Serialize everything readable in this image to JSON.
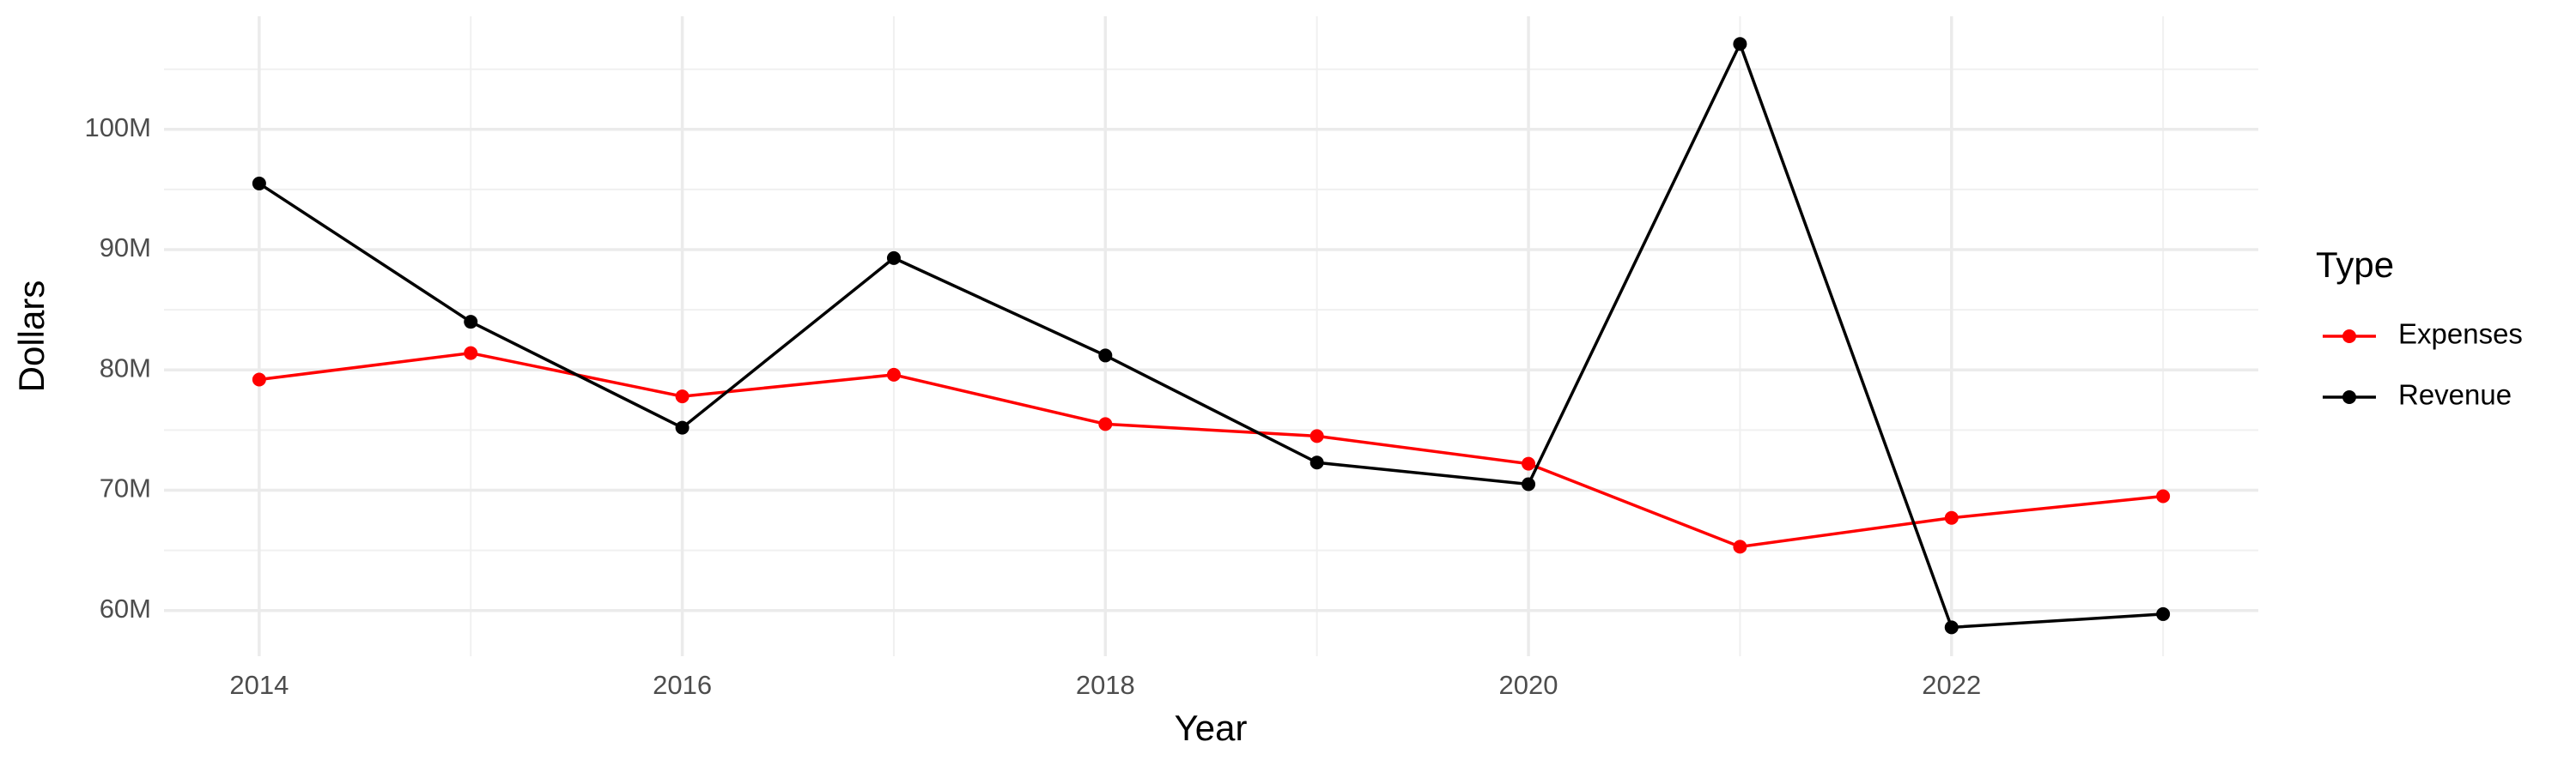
{
  "chart_data": {
    "type": "line",
    "x_label": "Year",
    "y_label": "Dollars",
    "legend_title": "Type",
    "legend_position": "right",
    "grid": true,
    "x": [
      2014,
      2015,
      2016,
      2017,
      2018,
      2019,
      2020,
      2021,
      2022,
      2023
    ],
    "series": [
      {
        "name": "Expenses",
        "color": "#ff0000",
        "values": [
          79200000,
          81400000,
          77800000,
          79600000,
          75500000,
          74500000,
          72200000,
          65300000,
          67700000,
          69500000
        ]
      },
      {
        "name": "Revenue",
        "color": "#000000",
        "values": [
          95500000,
          84000000,
          75200000,
          89300000,
          81200000,
          72300000,
          70500000,
          107100000,
          58600000,
          59700000
        ]
      }
    ],
    "xlim": [
      2013.55,
      2023.45
    ],
    "xticks": [
      2014,
      2016,
      2018,
      2020,
      2022
    ],
    "ylim": [
      56200000,
      109400000
    ],
    "yticks": [
      {
        "value": 60000000,
        "label": "60M"
      },
      {
        "value": 70000000,
        "label": "70M"
      },
      {
        "value": 80000000,
        "label": "80M"
      },
      {
        "value": 90000000,
        "label": "90M"
      },
      {
        "value": 100000000,
        "label": "100M"
      }
    ]
  }
}
